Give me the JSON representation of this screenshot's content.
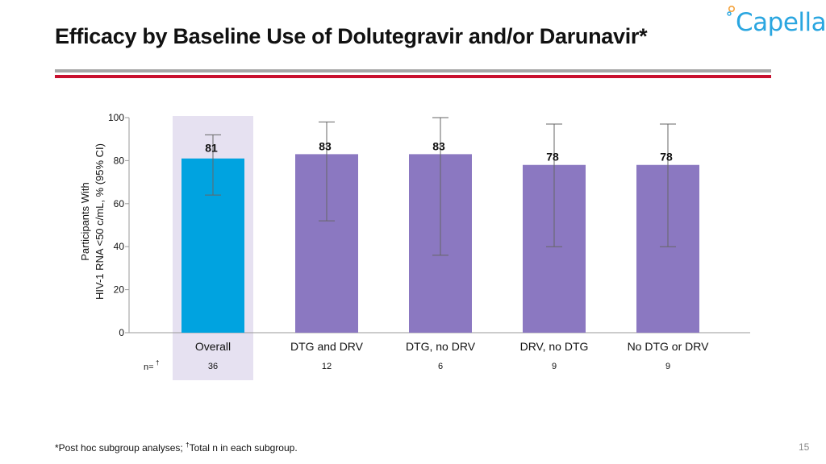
{
  "slide": {
    "title": "Efficacy by Baseline Use of Dolutegravir and/or Darunavir*",
    "footnote_main": "*Post hoc subgroup analyses; ",
    "footnote_dagger": "†",
    "footnote_rest": "Total n in each subgroup.",
    "page_number": "15",
    "logo_text": "Capella",
    "colors": {
      "title_rule_grey": "#a6a6a6",
      "title_rule_red": "#c8102e",
      "logo": "#2aa6e0"
    }
  },
  "chart_data": {
    "type": "bar",
    "categories": [
      "Overall",
      "DTG and DRV",
      "DTG, no DRV",
      "DRV, no DTG",
      "No DTG or DRV"
    ],
    "values": [
      81,
      83,
      83,
      78,
      78
    ],
    "data_labels": [
      "81",
      "83",
      "83",
      "78",
      "78"
    ],
    "ci_low": [
      64,
      52,
      36,
      40,
      40
    ],
    "ci_high": [
      92,
      98,
      100,
      97,
      97
    ],
    "n_label": "n=",
    "n_label_dagger": "†",
    "n_values": [
      "36",
      "12",
      "6",
      "9",
      "9"
    ],
    "ylabel_line1": "Participants With",
    "ylabel_line2": "HIV-1 RNA <50 c/mL, % (95% CI)",
    "ylim": [
      0,
      100
    ],
    "yticks": [
      0,
      20,
      40,
      60,
      80,
      100
    ],
    "grid": false,
    "highlight_category": "Overall",
    "colors": {
      "overall": "#00a3e0",
      "subgroups": "#8b78c1",
      "highlight_band": "#e6e1f1",
      "error_bar": "#666666",
      "axis": "#999999"
    }
  }
}
